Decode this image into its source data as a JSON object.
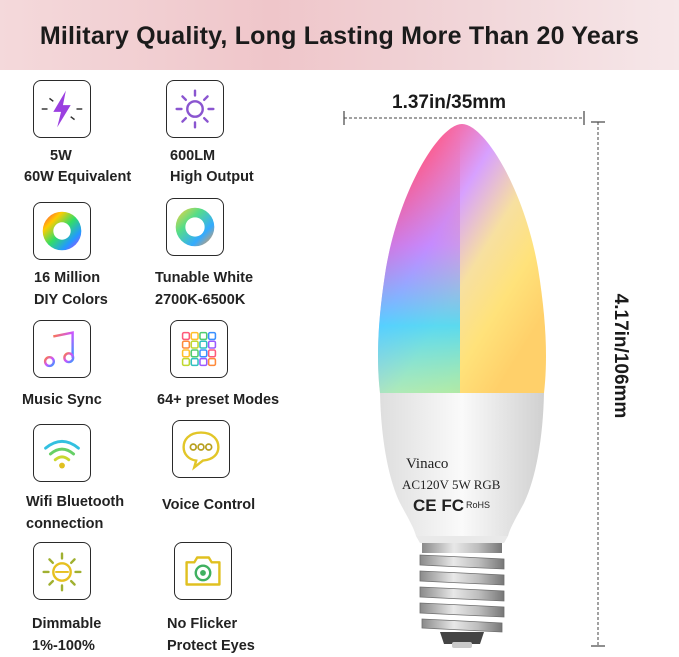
{
  "banner": {
    "title": "Military Quality, Long Lasting More Than 20 Years"
  },
  "features": [
    {
      "name": "feature-power",
      "icon": "lightning-icon",
      "line1": "5W",
      "line2": "60W Equivalent"
    },
    {
      "name": "feature-lumen",
      "icon": "sun-brightness-icon",
      "line1": "600LM",
      "line2": "High Output"
    },
    {
      "name": "feature-colors",
      "icon": "color-wheel-icon",
      "line1": "16 Million",
      "line2": "DIY Colors"
    },
    {
      "name": "feature-white",
      "icon": "tunable-white-ring-icon",
      "line1": "Tunable White",
      "line2": "2700K-6500K"
    },
    {
      "name": "feature-music",
      "icon": "music-note-icon",
      "line1": "Music Sync",
      "line2": ""
    },
    {
      "name": "feature-modes",
      "icon": "preset-grid-icon",
      "line1": "64+ preset Modes",
      "line2": ""
    },
    {
      "name": "feature-wifi",
      "icon": "wifi-icon",
      "line1": "Wifi Bluetooth",
      "line2": "connection"
    },
    {
      "name": "feature-voice",
      "icon": "speech-bubble-icon",
      "line1": "Voice Control",
      "line2": ""
    },
    {
      "name": "feature-dim",
      "icon": "dimmable-sun-icon",
      "line1": "Dimmable",
      "line2": "1%-100%"
    },
    {
      "name": "feature-flicker",
      "icon": "camera-icon",
      "line1": "No Flicker",
      "line2": "Protect Eyes"
    }
  ],
  "dimensions": {
    "width": "1.37in/35mm",
    "height": "4.17in/106mm"
  },
  "bulb": {
    "brand": "Vinaco",
    "spec": "AC120V 5W RGB",
    "marks": "CE FC",
    "rohs": "RoHS"
  }
}
